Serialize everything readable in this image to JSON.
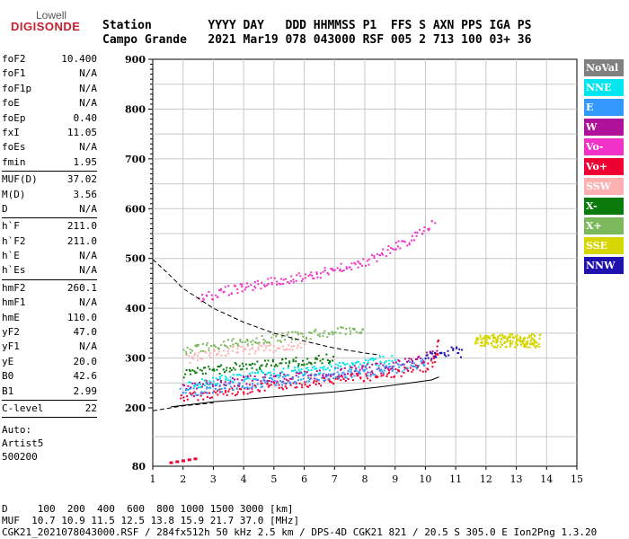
{
  "logo": {
    "top": "Lowell",
    "bottom": "DIGISONDE"
  },
  "header": {
    "line1": "Station        YYYY DAY   DDD HHMMSS P1  FFS S AXN PPS IGA PS",
    "line2": "Campo Grande   2021 Mar19 078 043000 RSF 005 2 713 100 03+ 36"
  },
  "params": [
    {
      "label": "foF2",
      "value": "10.400"
    },
    {
      "label": "foF1",
      "value": "N/A"
    },
    {
      "label": "foF1p",
      "value": "N/A"
    },
    {
      "label": "foE",
      "value": "N/A"
    },
    {
      "label": "foEp",
      "value": "0.40"
    },
    {
      "label": "fxI",
      "value": "11.05"
    },
    {
      "label": "foEs",
      "value": "N/A"
    },
    {
      "label": "fmin",
      "value": "1.95"
    },
    {
      "sep": true
    },
    {
      "label": "MUF(D)",
      "value": "37.02"
    },
    {
      "label": "M(D)",
      "value": "3.56"
    },
    {
      "label": "D",
      "value": "N/A"
    },
    {
      "sep": true
    },
    {
      "label": "h`F",
      "value": "211.0"
    },
    {
      "label": "h`F2",
      "value": "211.0"
    },
    {
      "label": "h`E",
      "value": "N/A"
    },
    {
      "label": "h`Es",
      "value": "N/A"
    },
    {
      "sep": true
    },
    {
      "label": "hmF2",
      "value": "260.1"
    },
    {
      "label": "hmF1",
      "value": "N/A"
    },
    {
      "label": "hmE",
      "value": "110.0"
    },
    {
      "label": "yF2",
      "value": "47.0"
    },
    {
      "label": "yF1",
      "value": "N/A"
    },
    {
      "label": "yE",
      "value": "20.0"
    },
    {
      "label": "B0",
      "value": "42.6"
    },
    {
      "label": "B1",
      "value": "2.99"
    },
    {
      "sep": true
    },
    {
      "label": "C-level",
      "value": "22"
    },
    {
      "sep": true
    }
  ],
  "auto": {
    "line1": "Auto:",
    "line2": "Artist5",
    "line3": "500200"
  },
  "legend": [
    {
      "label": "NoVal",
      "color": "#808080"
    },
    {
      "label": "NNE",
      "color": "#00e5ee"
    },
    {
      "label": "E",
      "color": "#3399ff"
    },
    {
      "label": "W",
      "color": "#b0119a"
    },
    {
      "label": "Vo-",
      "color": "#f032c8"
    },
    {
      "label": "Vo+",
      "color": "#ee0033"
    },
    {
      "label": "SSW",
      "color": "#ffb0b0"
    },
    {
      "label": "X-",
      "color": "#0a7a0a"
    },
    {
      "label": "X+",
      "color": "#7cb85c"
    },
    {
      "label": "SSE",
      "color": "#d6d600"
    },
    {
      "label": "NNW",
      "color": "#1f10b0"
    }
  ],
  "footer": {
    "line1": "D     100  200  400  600  800 1000 1500 3000 [km]",
    "line2": "MUF  10.7 10.9 11.5 12.5 13.8 15.9 21.7 37.0 [MHz]",
    "line3": "CGK21_2021078043000.RSF / 284fx512h 50 kHz 2.5 km / DPS-4D CGK21 821 / 20.5 S 305.0 E Ion2Png 1.3.20"
  },
  "chart_data": {
    "type": "scatter",
    "x_ticks": [
      "1",
      "2",
      "3",
      "4",
      "5",
      "6",
      "7",
      "8",
      "9",
      "10",
      "11",
      "12",
      "13",
      "14",
      "15"
    ],
    "y_ticks": [
      "80",
      "200",
      "300",
      "400",
      "500",
      "600",
      "700",
      "800",
      "900"
    ],
    "xlim": [
      1,
      15
    ],
    "y_axis_note": "y axis: 80 at bottom, then 200 to 900 in steps of 100",
    "grid": true,
    "profile_curve": [
      [
        1.6,
        202
      ],
      [
        3,
        212
      ],
      [
        5,
        222
      ],
      [
        7,
        232
      ],
      [
        8.5,
        242
      ],
      [
        9.5,
        250
      ],
      [
        10.2,
        256
      ],
      [
        10.45,
        262
      ]
    ],
    "dashed_curve": [
      [
        1,
        498
      ],
      [
        1.5,
        470
      ],
      [
        2,
        440
      ],
      [
        3,
        400
      ],
      [
        4,
        372
      ],
      [
        5,
        350
      ],
      [
        6,
        334
      ],
      [
        7,
        320
      ],
      [
        8,
        310
      ],
      [
        8.5,
        306
      ]
    ],
    "dashed_lower": [
      [
        1,
        194
      ],
      [
        1.5,
        199
      ],
      [
        2,
        204
      ],
      [
        3,
        210
      ]
    ],
    "traces": [
      {
        "name": "Vo+",
        "color": "#ee0033",
        "pts": [
          [
            1.9,
            222
          ],
          [
            3,
            230
          ],
          [
            4,
            238
          ],
          [
            5,
            245
          ],
          [
            6,
            252
          ],
          [
            7,
            258
          ],
          [
            8,
            264
          ],
          [
            9,
            272
          ],
          [
            9.8,
            280
          ],
          [
            10.2,
            290
          ],
          [
            10.35,
            305
          ],
          [
            10.45,
            340
          ]
        ]
      },
      {
        "name": "W",
        "color": "#b0119a",
        "pts": [
          [
            2,
            245
          ],
          [
            3,
            250
          ],
          [
            4,
            256
          ],
          [
            5,
            262
          ],
          [
            6,
            267
          ],
          [
            7,
            273
          ],
          [
            8,
            280
          ],
          [
            9,
            290
          ],
          [
            10,
            302
          ],
          [
            10.4,
            318
          ]
        ]
      },
      {
        "name": "E",
        "color": "#3399ff",
        "pts": [
          [
            1.9,
            232
          ],
          [
            3,
            240
          ],
          [
            4,
            248
          ],
          [
            5,
            254
          ],
          [
            6,
            260
          ],
          [
            7,
            266
          ],
          [
            8,
            272
          ],
          [
            9,
            280
          ],
          [
            10,
            292
          ]
        ]
      },
      {
        "name": "NNE",
        "color": "#00e5ee",
        "pts": [
          [
            2.2,
            248
          ],
          [
            3,
            256
          ],
          [
            4,
            264
          ],
          [
            5,
            270
          ],
          [
            6,
            276
          ],
          [
            7,
            284
          ],
          [
            8,
            292
          ],
          [
            9,
            300
          ]
        ]
      },
      {
        "name": "X-",
        "color": "#0a7a0a",
        "pts": [
          [
            2,
            268
          ],
          [
            3,
            278
          ],
          [
            4,
            285
          ],
          [
            5,
            290
          ],
          [
            6,
            296
          ],
          [
            7,
            302
          ]
        ]
      },
      {
        "name": "SSW",
        "color": "#ffb0b0",
        "pts": [
          [
            2.1,
            300
          ],
          [
            3,
            312
          ],
          [
            4,
            318
          ],
          [
            5,
            322
          ],
          [
            6,
            328
          ]
        ]
      },
      {
        "name": "NNW",
        "color": "#1f10b0",
        "pts": [
          [
            10,
            300
          ],
          [
            10.5,
            310
          ],
          [
            11,
            318
          ],
          [
            11.2,
            305
          ]
        ]
      },
      {
        "name": "SSE",
        "color": "#d6d600",
        "pts": [
          [
            11.7,
            330
          ],
          [
            12.2,
            340
          ],
          [
            12.8,
            338
          ],
          [
            13.3,
            332
          ],
          [
            13.7,
            328
          ]
        ]
      },
      {
        "name": "Vo-",
        "color": "#f032c8",
        "pts": [
          [
            2.5,
            420
          ],
          [
            3.5,
            438
          ],
          [
            5,
            455
          ],
          [
            6.5,
            472
          ],
          [
            8,
            495
          ],
          [
            9.5,
            540
          ],
          [
            10.3,
            575
          ]
        ]
      },
      {
        "name": "X+",
        "color": "#7cb85c",
        "pts": [
          [
            2,
            318
          ],
          [
            4,
            335
          ],
          [
            6,
            348
          ],
          [
            8,
            360
          ]
        ]
      }
    ],
    "low_points": [
      [
        1.55,
        90
      ],
      [
        1.75,
        92
      ],
      [
        1.95,
        94
      ],
      [
        2.15,
        96
      ],
      [
        2.35,
        98
      ]
    ]
  }
}
